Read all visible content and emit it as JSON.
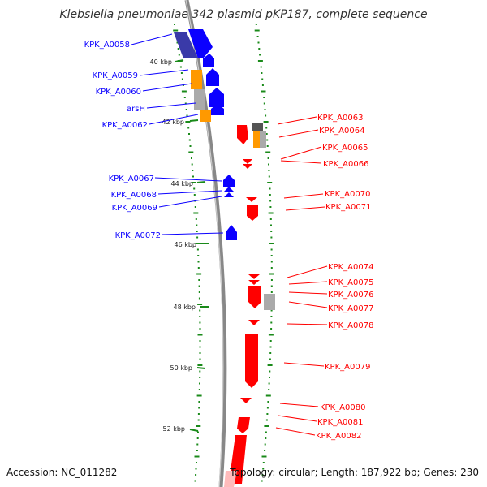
{
  "map": {
    "title": "Klebsiella pneumoniae 342 plasmid pKP187, complete sequence",
    "accession_text": "Accession: NC_011282",
    "summary_text": "Topology: circular; Length: 187,922 bp; Genes: 230"
  },
  "colors": {
    "forward": "#0b00ff",
    "reverse": "#ff0000",
    "orange": "#ff9900",
    "gray": "#aaaaaa",
    "dark": "#555555",
    "grid": "#1a8a1a",
    "backbone": "#888888"
  },
  "scale_ticks": [
    {
      "label": "40 kbp",
      "kbp": 40
    },
    {
      "label": "42 kbp",
      "kbp": 42
    },
    {
      "label": "44 kbp",
      "kbp": 44
    },
    {
      "label": "46 kbp",
      "kbp": 46
    },
    {
      "label": "48 kbp",
      "kbp": 48
    },
    {
      "label": "50 kbp",
      "kbp": 50
    },
    {
      "label": "52 kbp",
      "kbp": 52
    }
  ],
  "genes_forward": [
    {
      "name": "KPK_A0058"
    },
    {
      "name": "KPK_A0059"
    },
    {
      "name": "KPK_A0060"
    },
    {
      "name": "arsH"
    },
    {
      "name": "KPK_A0062"
    },
    {
      "name": "KPK_A0067"
    },
    {
      "name": "KPK_A0068"
    },
    {
      "name": "KPK_A0069"
    },
    {
      "name": "KPK_A0072"
    }
  ],
  "genes_reverse": [
    {
      "name": "KPK_A0063"
    },
    {
      "name": "KPK_A0064"
    },
    {
      "name": "KPK_A0065"
    },
    {
      "name": "KPK_A0066"
    },
    {
      "name": "KPK_A0070"
    },
    {
      "name": "KPK_A0071"
    },
    {
      "name": "KPK_A0074"
    },
    {
      "name": "KPK_A0075"
    },
    {
      "name": "KPK_A0076"
    },
    {
      "name": "KPK_A0077"
    },
    {
      "name": "KPK_A0078"
    },
    {
      "name": "KPK_A0079"
    },
    {
      "name": "KPK_A0080"
    },
    {
      "name": "KPK_A0081"
    },
    {
      "name": "KPK_A0082"
    }
  ]
}
